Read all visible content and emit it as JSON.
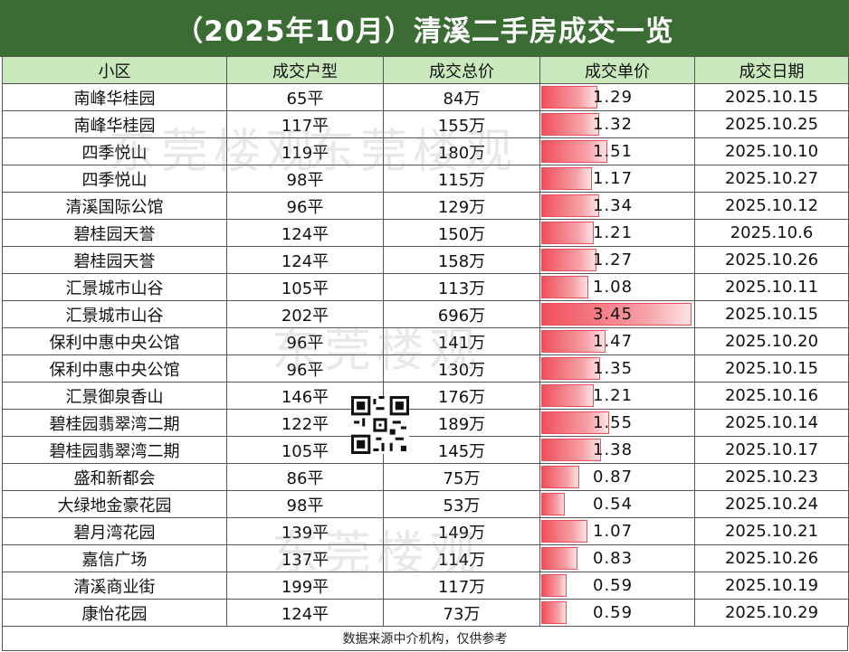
{
  "title": "（2025年10月）清溪二手房成交一览",
  "headers": [
    "小区",
    "成交户型",
    "成交总价",
    "成交单价",
    "成交日期"
  ],
  "rows": [
    {
      "name": "南峰华桂园",
      "size": "65平",
      "total": "84万",
      "unit": "1.29",
      "date": "2025.10.15"
    },
    {
      "name": "南峰华桂园",
      "size": "117平",
      "total": "155万",
      "unit": "1.32",
      "date": "2025.10.25"
    },
    {
      "name": "四季悦山",
      "size": "119平",
      "total": "180万",
      "unit": "1.51",
      "date": "2025.10.10"
    },
    {
      "name": "四季悦山",
      "size": "98平",
      "total": "115万",
      "unit": "1.17",
      "date": "2025.10.27"
    },
    {
      "name": "清溪国际公馆",
      "size": "96平",
      "total": "129万",
      "unit": "1.34",
      "date": "2025.10.12"
    },
    {
      "name": "碧桂园天誉",
      "size": "124平",
      "total": "150万",
      "unit": "1.21",
      "date": "2025.10.6"
    },
    {
      "name": "碧桂园天誉",
      "size": "124平",
      "total": "158万",
      "unit": "1.27",
      "date": "2025.10.26"
    },
    {
      "name": "汇景城市山谷",
      "size": "105平",
      "total": "113万",
      "unit": "1.08",
      "date": "2025.10.11"
    },
    {
      "name": "汇景城市山谷",
      "size": "202平",
      "total": "696万",
      "unit": "3.45",
      "date": "2025.10.15"
    },
    {
      "name": "保利中惠中央公馆",
      "size": "96平",
      "total": "141万",
      "unit": "1.47",
      "date": "2025.10.20"
    },
    {
      "name": "保利中惠中央公馆",
      "size": "96平",
      "total": "130万",
      "unit": "1.35",
      "date": "2025.10.15"
    },
    {
      "name": "汇景御泉香山",
      "size": "146平",
      "total": "176万",
      "unit": "1.21",
      "date": "2025.10.16"
    },
    {
      "name": "碧桂园翡翠湾二期",
      "size": "122平",
      "total": "189万",
      "unit": "1.55",
      "date": "2025.10.14"
    },
    {
      "name": "碧桂园翡翠湾二期",
      "size": "105平",
      "total": "145万",
      "unit": "1.38",
      "date": "2025.10.17"
    },
    {
      "name": "盛和新都会",
      "size": "86平",
      "total": "75万",
      "unit": "0.87",
      "date": "2025.10.23"
    },
    {
      "name": "大绿地金豪花园",
      "size": "98平",
      "total": "53万",
      "unit": "0.54",
      "date": "2025.10.24"
    },
    {
      "name": "碧月湾花园",
      "size": "139平",
      "total": "149万",
      "unit": "1.07",
      "date": "2025.10.21"
    },
    {
      "name": "嘉信广场",
      "size": "137平",
      "total": "114万",
      "unit": "0.83",
      "date": "2025.10.26"
    },
    {
      "name": "清溪商业街",
      "size": "199平",
      "total": "117万",
      "unit": "0.59",
      "date": "2025.10.19"
    },
    {
      "name": "康怡花园",
      "size": "124平",
      "total": "73万",
      "unit": "0.59",
      "date": "2025.10.29"
    }
  ],
  "unit_bar_max": 3.45,
  "footer": "数据来源中介机构，仅供参考",
  "watermark": "东莞楼观",
  "colors": {
    "title_bg": "#3b6c34",
    "header_bg": "#c9e9bd",
    "bar": "#f04f5a"
  },
  "icons": [
    "qr-code-icon"
  ]
}
